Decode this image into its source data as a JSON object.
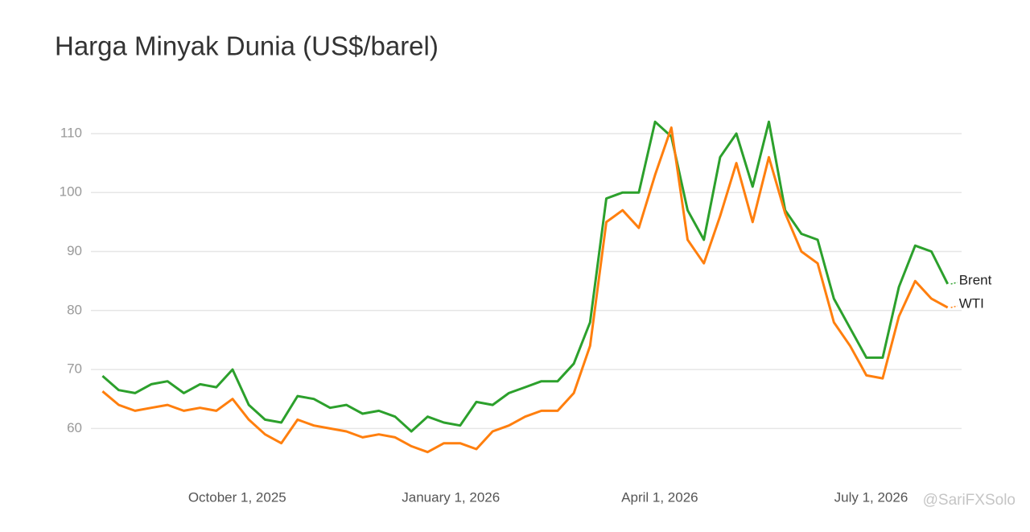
{
  "chart_data": {
    "type": "line",
    "title": "Harga Minyak Dunia (US$/barel)",
    "x": [
      "2025-08-04",
      "2025-08-11",
      "2025-08-18",
      "2025-08-25",
      "2025-09-01",
      "2025-09-08",
      "2025-09-15",
      "2025-09-22",
      "2025-09-29",
      "2025-10-06",
      "2025-10-13",
      "2025-10-20",
      "2025-10-27",
      "2025-11-03",
      "2025-11-10",
      "2025-11-17",
      "2025-11-24",
      "2025-12-01",
      "2025-12-08",
      "2025-12-15",
      "2025-12-22",
      "2025-12-29",
      "2026-01-05",
      "2026-01-12",
      "2026-01-19",
      "2026-01-26",
      "2026-02-02",
      "2026-02-09",
      "2026-02-16",
      "2026-02-23",
      "2026-03-02",
      "2026-03-09",
      "2026-03-16",
      "2026-03-23",
      "2026-03-30",
      "2026-04-06",
      "2026-04-13",
      "2026-04-20",
      "2026-04-27",
      "2026-05-04",
      "2026-05-11",
      "2026-05-18",
      "2026-05-25",
      "2026-06-01",
      "2026-06-08",
      "2026-06-15",
      "2026-06-22",
      "2026-06-29",
      "2026-07-06",
      "2026-07-13",
      "2026-07-20",
      "2026-07-27",
      "2026-08-03"
    ],
    "series": [
      {
        "name": "Brent",
        "color": "#2ca02c",
        "values": [
          68.9,
          66.5,
          66,
          67.5,
          68,
          66,
          67.5,
          67,
          70,
          64,
          61.5,
          61,
          65.5,
          65,
          63.5,
          64,
          62.5,
          63,
          62,
          59.5,
          62,
          61,
          60.5,
          64.5,
          64,
          66,
          67,
          68,
          68,
          71,
          78,
          99,
          100,
          100,
          112,
          109.5,
          97,
          92,
          106,
          110,
          101,
          112,
          97,
          93,
          92,
          82,
          77,
          72,
          72,
          84,
          91,
          90,
          84.5
        ]
      },
      {
        "name": "WTI",
        "color": "#ff7f0e",
        "values": [
          66.3,
          64,
          63,
          63.5,
          64,
          63,
          63.5,
          63,
          65,
          61.5,
          59,
          57.5,
          61.5,
          60.5,
          60,
          59.5,
          58.5,
          59,
          58.5,
          57,
          56,
          57.5,
          57.5,
          56.5,
          59.5,
          60.5,
          62,
          63,
          63,
          66,
          74,
          95,
          97,
          94,
          103,
          111,
          92,
          88,
          96,
          105,
          95,
          106,
          96.5,
          90,
          88,
          78,
          74,
          69,
          68.5,
          79,
          85,
          82,
          80.5
        ]
      }
    ],
    "xlim": [
      "2025-07-30",
      "2026-08-09"
    ],
    "xticks": [
      {
        "value": "2025-10-01",
        "label": "October 1, 2025"
      },
      {
        "value": "2026-01-01",
        "label": "January 1, 2026"
      },
      {
        "value": "2026-04-01",
        "label": "April 1, 2026"
      },
      {
        "value": "2026-07-01",
        "label": "July 1, 2026"
      }
    ],
    "ylim": [
      53.5,
      119
    ],
    "yticks": [
      60,
      70,
      80,
      90,
      100,
      110
    ],
    "grid": true,
    "watermark": "@SariFXSolo"
  }
}
